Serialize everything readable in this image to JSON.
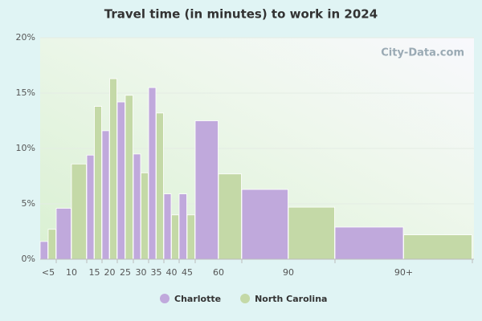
{
  "chart_data": {
    "type": "bar",
    "title": "Travel time (in minutes) to work in 2024",
    "watermark": "City-Data.com",
    "categories": [
      "<5",
      "10",
      "15",
      "20",
      "25",
      "30",
      "35",
      "40",
      "45",
      "60",
      "90",
      "90+"
    ],
    "series": [
      {
        "name": "Charlotte",
        "color": "#c0a9dc",
        "values": [
          1.6,
          4.6,
          9.4,
          11.6,
          14.2,
          9.5,
          15.5,
          5.9,
          5.9,
          12.5,
          6.3,
          2.9
        ]
      },
      {
        "name": "North Carolina",
        "color": "#c4d9a7",
        "values": [
          2.7,
          8.6,
          13.8,
          16.3,
          14.8,
          7.8,
          13.2,
          4.0,
          4.0,
          7.7,
          4.7,
          2.2
        ]
      }
    ],
    "ylim": [
      0,
      20
    ],
    "yticks": [
      {
        "value": 0,
        "label": "0%"
      },
      {
        "value": 5,
        "label": "5%"
      },
      {
        "value": 10,
        "label": "10%"
      },
      {
        "value": 15,
        "label": "15%"
      },
      {
        "value": 20,
        "label": "20%"
      }
    ],
    "grid": true,
    "legend": "bottom"
  }
}
